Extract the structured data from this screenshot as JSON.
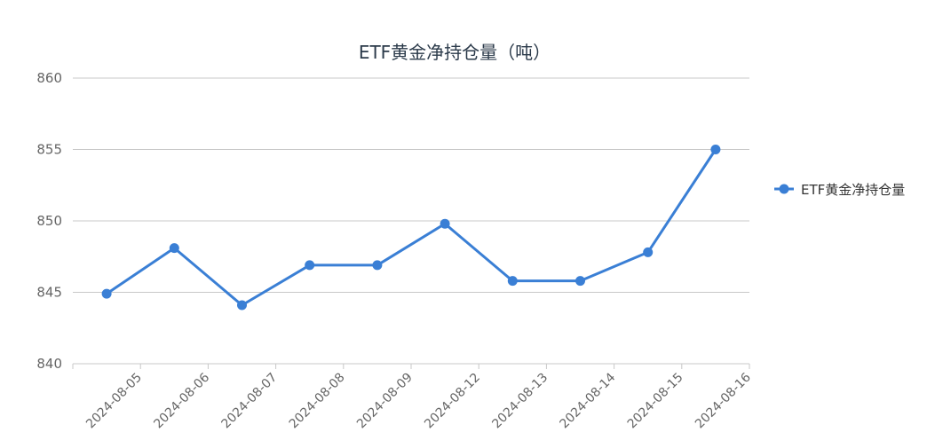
{
  "chart_data": {
    "type": "line",
    "title": "ETF黄金净持仓量（吨）",
    "categories": [
      "2024-08-05",
      "2024-08-06",
      "2024-08-07",
      "2024-08-08",
      "2024-08-09",
      "2024-08-12",
      "2024-08-13",
      "2024-08-14",
      "2024-08-15",
      "2024-08-16"
    ],
    "series": [
      {
        "name": "ETF黄金净持仓量",
        "values": [
          844.9,
          848.1,
          844.1,
          846.9,
          846.9,
          849.8,
          845.8,
          845.8,
          847.8,
          855.0
        ],
        "color": "#3a7fd5"
      }
    ],
    "ylim": [
      840,
      860
    ],
    "yticks": [
      840,
      845,
      850,
      855,
      860
    ],
    "grid": true,
    "legend": "right"
  }
}
